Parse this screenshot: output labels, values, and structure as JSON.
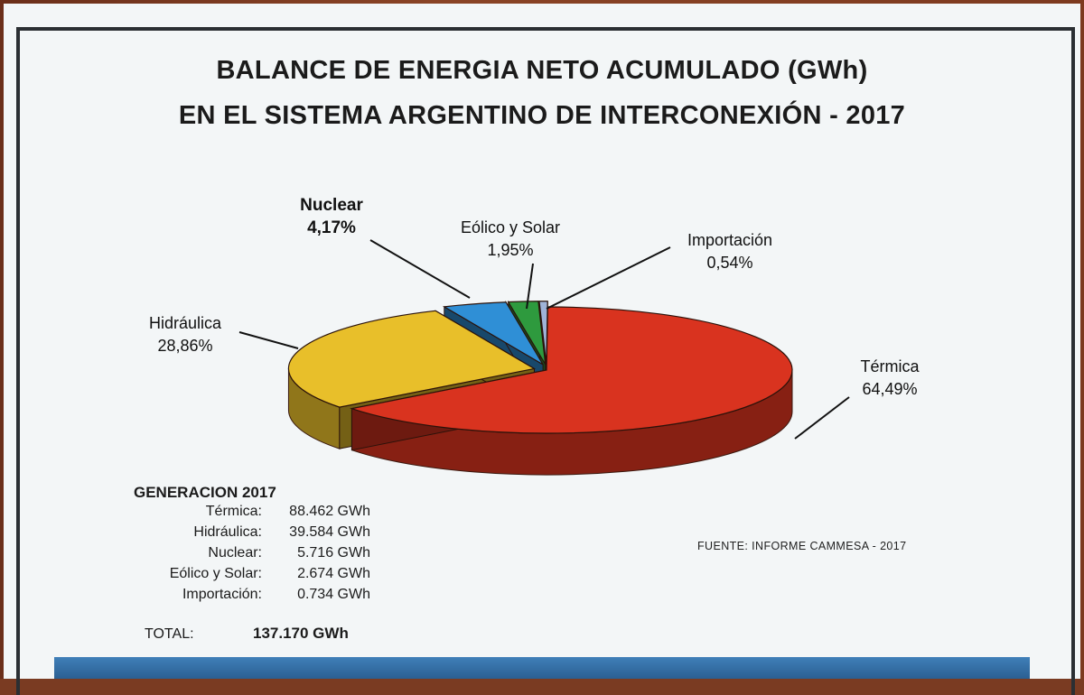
{
  "title_line1": "BALANCE DE ENERGIA NETO ACUMULADO (GWh)",
  "title_line2": "EN EL SISTEMA ARGENTINO DE INTERCONEXIÓN - 2017",
  "chart_data": {
    "type": "pie",
    "title": "BALANCE DE ENERGIA NETO ACUMULADO (GWh) EN EL SISTEMA ARGENTINO DE INTERCONEXIÓN - 2017",
    "slices": [
      {
        "name": "Térmica",
        "value": 64.49,
        "label": "64,49%",
        "color": "#d9331f"
      },
      {
        "name": "Hidráulica",
        "value": 28.86,
        "label": "28,86%",
        "color": "#e8bf2a"
      },
      {
        "name": "Nuclear",
        "value": 4.17,
        "label": "4,17%",
        "color": "#2f8fd6"
      },
      {
        "name": "Eólico y Solar",
        "value": 1.95,
        "label": "1,95%",
        "color": "#2e9a3e"
      },
      {
        "name": "Importación",
        "value": 0.54,
        "label": "0,54%",
        "color": "#9fb3d8"
      }
    ]
  },
  "generation": {
    "title": "GENERACION 2017",
    "rows": [
      {
        "label": "Térmica:",
        "value": "88.462 GWh"
      },
      {
        "label": "Hidráulica:",
        "value": "39.584 GWh"
      },
      {
        "label": "Nuclear:",
        "value": "5.716 GWh"
      },
      {
        "label": "Eólico y Solar:",
        "value": "2.674 GWh"
      },
      {
        "label": "Importación:",
        "value": "0.734 GWh"
      }
    ],
    "total_label": "TOTAL:",
    "total_value": "137.170 GWh"
  },
  "source": "FUENTE:  INFORME  CAMMESA - 2017"
}
